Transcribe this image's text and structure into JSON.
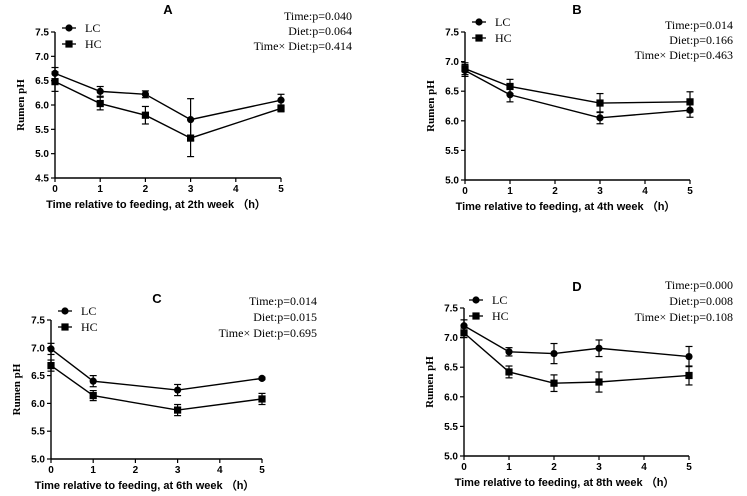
{
  "chart_data": [
    {
      "type": "line",
      "panel": "A",
      "xlabel": "Time relative to feeding, at 2th week （h）",
      "ylabel": "Rumen pH",
      "xlim": [
        0,
        5
      ],
      "ylim": [
        4.5,
        7.5
      ],
      "xticks": [
        0,
        1,
        2,
        3,
        4,
        5
      ],
      "yticks": [
        4.5,
        5.0,
        5.5,
        6.0,
        6.5,
        7.0,
        7.5
      ],
      "legend_position": "top-left",
      "stats": [
        "Time:p=0.040",
        "Diet:p=0.064",
        "Time× Diet:p=0.414"
      ],
      "series": [
        {
          "name": "LC",
          "marker": "circle",
          "x": [
            0,
            1,
            2,
            3,
            5
          ],
          "values": [
            6.65,
            6.28,
            6.22,
            5.7,
            6.1
          ],
          "errors": [
            0.12,
            0.1,
            0.07,
            0.43,
            0.12
          ]
        },
        {
          "name": "HC",
          "marker": "square",
          "x": [
            0,
            1,
            2,
            3,
            5
          ],
          "values": [
            6.48,
            6.03,
            5.79,
            5.32,
            5.93
          ],
          "errors": [
            0.2,
            0.13,
            0.18,
            0.38,
            0.07
          ]
        }
      ]
    },
    {
      "type": "line",
      "panel": "B",
      "xlabel": "Time relative to feeding, at 4th week （h）",
      "ylabel": "Rumen pH",
      "xlim": [
        0,
        5
      ],
      "ylim": [
        5.0,
        7.5
      ],
      "xticks": [
        0,
        1,
        2,
        3,
        4,
        5
      ],
      "yticks": [
        5.0,
        5.5,
        6.0,
        6.5,
        7.0,
        7.5
      ],
      "legend_position": "top-left",
      "stats": [
        "Time:p=0.014",
        "Diet:p=0.166",
        "Time× Diet:p=0.463"
      ],
      "series": [
        {
          "name": "LC",
          "marker": "circle",
          "x": [
            0,
            1,
            3,
            5
          ],
          "values": [
            6.85,
            6.44,
            6.05,
            6.18
          ],
          "errors": [
            0.1,
            0.12,
            0.1,
            0.12
          ]
        },
        {
          "name": "HC",
          "marker": "square",
          "x": [
            0,
            1,
            3,
            5
          ],
          "values": [
            6.88,
            6.58,
            6.3,
            6.32
          ],
          "errors": [
            0.1,
            0.12,
            0.16,
            0.17
          ]
        }
      ]
    },
    {
      "type": "line",
      "panel": "C",
      "xlabel": "Time relative to feeding, at 6th week （h）",
      "ylabel": "Rumen pH",
      "xlim": [
        0,
        5
      ],
      "ylim": [
        5.0,
        7.5
      ],
      "xticks": [
        0,
        1,
        2,
        3,
        4,
        5
      ],
      "yticks": [
        5.0,
        5.5,
        6.0,
        6.5,
        7.0,
        7.5
      ],
      "legend_position": "top-left",
      "stats": [
        "Time:p=0.014",
        "Diet:p=0.015",
        "Time× Diet:p=0.695"
      ],
      "series": [
        {
          "name": "LC",
          "marker": "circle",
          "x": [
            0,
            1,
            3,
            5
          ],
          "values": [
            6.98,
            6.4,
            6.24,
            6.45
          ],
          "errors": [
            0.1,
            0.1,
            0.1,
            0.02
          ]
        },
        {
          "name": "HC",
          "marker": "square",
          "x": [
            0,
            1,
            3,
            5
          ],
          "values": [
            6.68,
            6.14,
            5.88,
            6.08
          ],
          "errors": [
            0.1,
            0.09,
            0.1,
            0.1
          ]
        }
      ]
    },
    {
      "type": "line",
      "panel": "D",
      "xlabel": "Time relative to feeding, at 8th week （h）",
      "ylabel": "Rumen pH",
      "xlim": [
        0,
        5
      ],
      "ylim": [
        5.0,
        7.5
      ],
      "xticks": [
        0,
        1,
        2,
        3,
        4,
        5
      ],
      "yticks": [
        5.0,
        5.5,
        6.0,
        6.5,
        7.0,
        7.5
      ],
      "legend_position": "top-left",
      "stats": [
        "Time:p=0.000",
        "Diet:p=0.008",
        "Time× Diet:p=0.108"
      ],
      "series": [
        {
          "name": "LC",
          "marker": "circle",
          "x": [
            0,
            1,
            2,
            3,
            5
          ],
          "values": [
            7.2,
            6.76,
            6.73,
            6.82,
            6.68
          ],
          "errors": [
            0.1,
            0.07,
            0.17,
            0.14,
            0.17
          ]
        },
        {
          "name": "HC",
          "marker": "square",
          "x": [
            0,
            1,
            2,
            3,
            5
          ],
          "values": [
            7.08,
            6.42,
            6.23,
            6.25,
            6.36
          ],
          "errors": [
            0.08,
            0.1,
            0.14,
            0.17,
            0.16
          ]
        }
      ]
    }
  ]
}
